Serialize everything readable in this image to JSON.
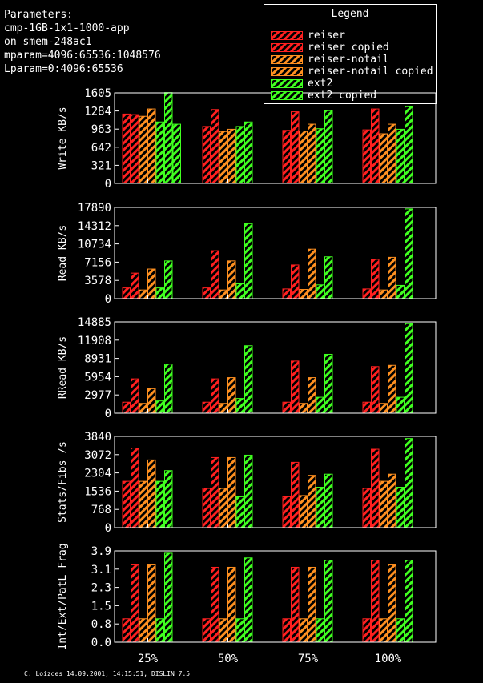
{
  "params": {
    "title": "Parameters:",
    "lines": [
      "cmp-1GB-1x1-1000-app",
      "on smem-248ac1",
      "mparam=4096:65536:1048576",
      "Lparam=0:4096:65536"
    ]
  },
  "legend": {
    "title": "Legend",
    "items": [
      {
        "label": "reiser",
        "color": "#ff2020"
      },
      {
        "label": "reiser copied",
        "color": "#ff2020"
      },
      {
        "label": "reiser-notail",
        "color": "#ff9020"
      },
      {
        "label": "reiser-notail copied",
        "color": "#ff9020"
      },
      {
        "label": "ext2",
        "color": "#40ff20"
      },
      {
        "label": "ext2 copied",
        "color": "#40ff20"
      }
    ]
  },
  "footer": "C. Loizdes 14.09.2001, 14:15:51, DISLIN 7.5",
  "chart_data": [
    {
      "type": "bar",
      "ylabel": "Write KB/s",
      "ylim": [
        0,
        1605
      ],
      "yticks": [
        "0",
        "321",
        "642",
        "963",
        "1284",
        "1605"
      ],
      "categories": [
        "25%",
        "50%",
        "75%",
        "100%"
      ],
      "series": [
        {
          "name": "reiser",
          "values": [
            1230,
            1010,
            940,
            950
          ]
        },
        {
          "name": "reiser copied",
          "values": [
            1220,
            1310,
            1270,
            1320
          ]
        },
        {
          "name": "reiser-notail",
          "values": [
            1190,
            920,
            930,
            880
          ]
        },
        {
          "name": "reiser-notail copied",
          "values": [
            1320,
            960,
            1050,
            1050
          ]
        },
        {
          "name": "ext2",
          "values": [
            1090,
            1010,
            970,
            960
          ]
        },
        {
          "name": "ext2 copied",
          "values": [
            1610,
            1090,
            1290,
            1360
          ]
        },
        {
          "name": "ext2 copied",
          "values": [
            1050,
            0,
            0,
            0
          ]
        }
      ]
    },
    {
      "type": "bar",
      "ylabel": "Read KB/s",
      "ylim": [
        0,
        17890
      ],
      "yticks": [
        "0",
        "3578",
        "7156",
        "10734",
        "14312",
        "17890"
      ],
      "categories": [
        "25%",
        "50%",
        "75%",
        "100%"
      ],
      "series": [
        {
          "name": "reiser",
          "values": [
            2100,
            2100,
            1900,
            1900
          ]
        },
        {
          "name": "reiser copied",
          "values": [
            5000,
            9400,
            6600,
            7700
          ]
        },
        {
          "name": "reiser-notail",
          "values": [
            1700,
            1700,
            1800,
            1700
          ]
        },
        {
          "name": "reiser-notail copied",
          "values": [
            5800,
            7400,
            9700,
            8100
          ]
        },
        {
          "name": "ext2",
          "values": [
            2100,
            2900,
            2700,
            2600
          ]
        },
        {
          "name": "ext2 copied",
          "values": [
            7400,
            14700,
            8200,
            17600
          ]
        }
      ]
    },
    {
      "type": "bar",
      "ylabel": "RRead KB/s",
      "ylim": [
        0,
        14885
      ],
      "yticks": [
        "0",
        "2977",
        "5954",
        "8931",
        "11908",
        "14885"
      ],
      "categories": [
        "25%",
        "50%",
        "75%",
        "100%"
      ],
      "series": [
        {
          "name": "reiser",
          "values": [
            1800,
            1800,
            1800,
            1800
          ]
        },
        {
          "name": "reiser copied",
          "values": [
            5600,
            5600,
            8500,
            7600
          ]
        },
        {
          "name": "reiser-notail",
          "values": [
            1600,
            1600,
            1600,
            1600
          ]
        },
        {
          "name": "reiser-notail copied",
          "values": [
            4000,
            5800,
            5800,
            7800
          ]
        },
        {
          "name": "ext2",
          "values": [
            2000,
            2400,
            2600,
            2600
          ]
        },
        {
          "name": "ext2 copied",
          "values": [
            8000,
            11000,
            9600,
            14600
          ]
        }
      ]
    },
    {
      "type": "bar",
      "ylabel": "Stats/Fibs /s",
      "ylim": [
        0,
        3840
      ],
      "yticks": [
        "0",
        "768",
        "1536",
        "2304",
        "3072",
        "3840"
      ],
      "categories": [
        "25%",
        "50%",
        "75%",
        "100%"
      ],
      "series": [
        {
          "name": "reiser",
          "values": [
            1950,
            1650,
            1300,
            1650
          ]
        },
        {
          "name": "reiser copied",
          "values": [
            3350,
            2950,
            2750,
            3300
          ]
        },
        {
          "name": "reiser-notail",
          "values": [
            1950,
            1650,
            1350,
            1950
          ]
        },
        {
          "name": "reiser-notail copied",
          "values": [
            2850,
            2950,
            2200,
            2250
          ]
        },
        {
          "name": "ext2",
          "values": [
            1950,
            1300,
            1700,
            1700
          ]
        },
        {
          "name": "ext2 copied",
          "values": [
            2400,
            3050,
            2250,
            3750
          ]
        }
      ]
    },
    {
      "type": "bar",
      "ylabel": "Int/Ext/PatL Frag",
      "ylim": [
        0,
        3.9
      ],
      "yticks": [
        "0.0",
        "0.8",
        "1.5",
        "2.3",
        "3.1",
        "3.9"
      ],
      "categories": [
        "25%",
        "50%",
        "75%",
        "100%"
      ],
      "series": [
        {
          "name": "reiser",
          "values": [
            1.0,
            1.0,
            1.0,
            1.0
          ]
        },
        {
          "name": "reiser copied",
          "values": [
            3.3,
            3.2,
            3.2,
            3.5
          ]
        },
        {
          "name": "reiser-notail",
          "values": [
            1.0,
            1.0,
            1.0,
            1.0
          ]
        },
        {
          "name": "reiser-notail copied",
          "values": [
            3.3,
            3.2,
            3.2,
            3.3
          ]
        },
        {
          "name": "ext2",
          "values": [
            1.0,
            1.0,
            1.0,
            1.0
          ]
        },
        {
          "name": "ext2 copied",
          "values": [
            3.8,
            3.6,
            3.5,
            3.5
          ]
        }
      ]
    }
  ]
}
